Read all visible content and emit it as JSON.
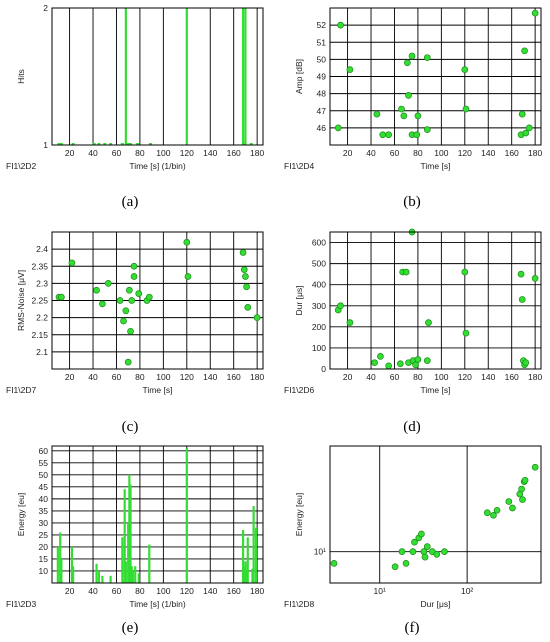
{
  "chart_data": [
    {
      "panel": "(a)",
      "id": "FI1\\2D2",
      "type": "bar",
      "xlabel": "Time [s] (1/bin)",
      "ylabel": "Hits",
      "xlim": [
        5,
        185
      ],
      "ylim": [
        1,
        2
      ],
      "xticks": [
        20,
        40,
        60,
        80,
        100,
        120,
        140,
        160,
        180
      ],
      "yticks": [
        1,
        2
      ],
      "grid": true,
      "color": "#33dd33",
      "x": [
        11,
        13,
        23,
        41,
        45,
        50,
        55,
        65,
        68,
        70,
        72,
        78,
        89,
        120,
        168,
        169,
        170,
        175
      ],
      "values": [
        1,
        1,
        1,
        1,
        1,
        1,
        1,
        1,
        2,
        1,
        1,
        1,
        1,
        2,
        2,
        1,
        2,
        1
      ]
    },
    {
      "panel": "(b)",
      "id": "FI1\\2D4",
      "type": "scatter",
      "xlabel": "Time [s]",
      "ylabel": "Amp [dB]",
      "xlim": [
        5,
        185
      ],
      "ylim": [
        45,
        53
      ],
      "xticks": [
        20,
        40,
        60,
        80,
        100,
        120,
        140,
        160,
        180
      ],
      "yticks": [
        46,
        47,
        48,
        49,
        50,
        51,
        52
      ],
      "grid": true,
      "color": "#33dd33",
      "x": [
        12,
        14,
        22,
        45,
        50,
        55,
        66,
        68,
        71,
        72,
        75,
        75,
        79,
        80,
        88,
        88,
        120,
        121,
        168,
        169,
        171,
        172,
        175,
        180
      ],
      "y": [
        46,
        52,
        49.4,
        46.8,
        45.6,
        45.6,
        47.1,
        46.7,
        49.8,
        47.9,
        50.2,
        45.6,
        45.6,
        46.7,
        45.9,
        50.1,
        49.4,
        47.1,
        45.6,
        46.8,
        50.5,
        45.7,
        46,
        52.7
      ]
    },
    {
      "panel": "(c)",
      "id": "FI1\\2D7",
      "type": "scatter",
      "xlabel": "Time [s]",
      "ylabel": "RMS-Noise [μV]",
      "xlim": [
        5,
        185
      ],
      "ylim": [
        2.05,
        2.45
      ],
      "xticks": [
        20,
        40,
        60,
        80,
        100,
        120,
        140,
        160,
        180
      ],
      "yticks": [
        2.1,
        2.15,
        2.2,
        2.25,
        2.3,
        2.35,
        2.4
      ],
      "grid": true,
      "color": "#33dd33",
      "x": [
        11,
        13,
        22,
        43,
        48,
        53,
        63,
        66,
        68,
        70,
        71,
        72,
        73,
        75,
        75,
        79,
        86,
        88,
        120,
        121,
        168,
        169,
        170,
        171,
        172,
        180
      ],
      "y": [
        2.26,
        2.26,
        2.36,
        2.28,
        2.24,
        2.3,
        2.25,
        2.19,
        2.22,
        2.07,
        2.28,
        2.16,
        2.25,
        2.35,
        2.32,
        2.27,
        2.25,
        2.26,
        2.42,
        2.32,
        2.39,
        2.34,
        2.32,
        2.29,
        2.23,
        2.2
      ]
    },
    {
      "panel": "(d)",
      "id": "FI1\\2D6",
      "type": "scatter",
      "xlabel": "Time [s]",
      "ylabel": "Dur [μs]",
      "xlim": [
        5,
        185
      ],
      "ylim": [
        0,
        650
      ],
      "xticks": [
        20,
        40,
        60,
        80,
        100,
        120,
        140,
        160,
        180
      ],
      "yticks": [
        0,
        100,
        200,
        300,
        400,
        500,
        600
      ],
      "grid": true,
      "color": "#33dd33",
      "x": [
        12,
        14,
        22,
        43,
        48,
        55,
        65,
        67,
        70,
        72,
        75,
        76,
        78,
        80,
        88,
        89,
        120,
        121,
        168,
        169,
        170,
        171,
        172,
        180
      ],
      "y": [
        280,
        300,
        220,
        30,
        60,
        15,
        25,
        460,
        460,
        30,
        650,
        40,
        20,
        45,
        40,
        220,
        460,
        170,
        450,
        330,
        40,
        20,
        30,
        430
      ]
    },
    {
      "panel": "(e)",
      "id": "FI1\\2D3",
      "type": "bar",
      "xlabel": "Time [s] (1/bin)",
      "ylabel": "Energy [eu]",
      "xlim": [
        5,
        185
      ],
      "ylim": [
        5,
        62
      ],
      "xticks": [
        20,
        40,
        60,
        80,
        100,
        120,
        140,
        160,
        180
      ],
      "yticks": [
        10,
        15,
        20,
        25,
        30,
        35,
        40,
        45,
        50,
        55,
        60
      ],
      "grid": true,
      "color": "#33dd33",
      "x": [
        10,
        12,
        13,
        22,
        23,
        43,
        45,
        48,
        55,
        65,
        67,
        68,
        70,
        71,
        72,
        73,
        74,
        76,
        79,
        88,
        120,
        168,
        169,
        170,
        171,
        172,
        176,
        177,
        179
      ],
      "values": [
        20,
        26,
        15,
        20,
        12,
        13,
        10,
        8,
        8,
        24,
        44,
        14,
        30,
        50,
        46,
        12,
        10,
        12,
        9,
        21,
        61,
        27,
        12,
        14,
        10,
        24,
        11,
        37,
        28
      ]
    },
    {
      "panel": "(f)",
      "id": "FI1\\2D8",
      "type": "scatter",
      "xlabel": "Dur [μs]",
      "ylabel": "Energy [eu]",
      "xscale": "log",
      "yscale": "log",
      "xlim": [
        2.7,
        700
      ],
      "ylim": [
        5.5,
        75
      ],
      "xticks": [
        10,
        100
      ],
      "yticks": [
        10
      ],
      "xticklabels": [
        "10¹",
        "10²"
      ],
      "yticklabels": [
        "10¹"
      ],
      "grid": true,
      "color": "#33dd33",
      "x": [
        3,
        15,
        18,
        20,
        24,
        25,
        28,
        30,
        32,
        33,
        35,
        40,
        45,
        55,
        170,
        200,
        220,
        300,
        330,
        400,
        420,
        430,
        450,
        460,
        600
      ],
      "y": [
        8,
        7.5,
        10,
        8,
        10,
        12,
        13,
        14,
        10,
        9,
        11,
        10,
        9.5,
        10,
        21,
        20,
        22,
        26,
        23,
        30,
        33,
        27,
        38,
        39,
        50
      ]
    }
  ]
}
